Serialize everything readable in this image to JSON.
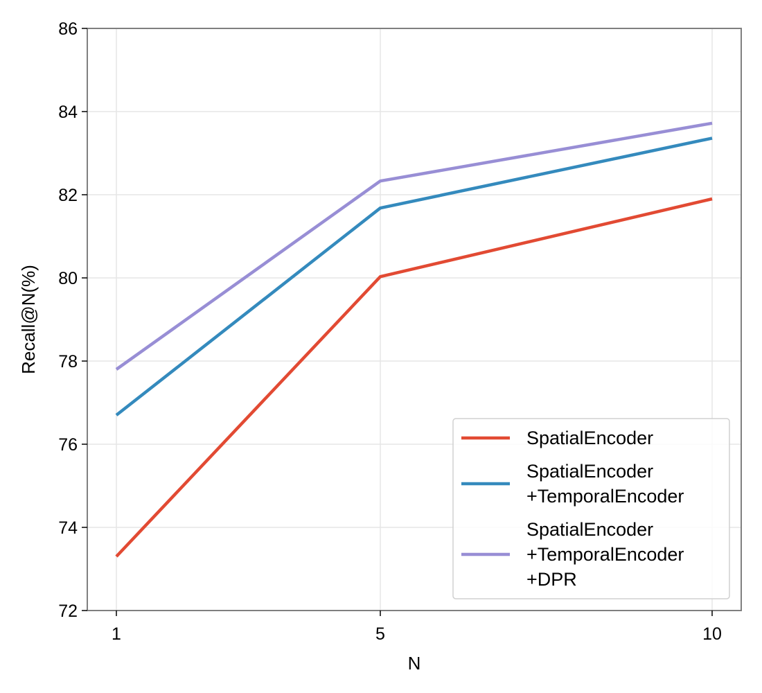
{
  "chart_data": {
    "type": "line",
    "x": [
      1,
      5,
      10
    ],
    "x_ticks": [
      "1",
      "5",
      "10"
    ],
    "xlabel": "N",
    "ylabel": "Recall@N(%)",
    "ylim": [
      72,
      86
    ],
    "y_ticks": [
      72,
      74,
      76,
      78,
      80,
      82,
      84,
      86
    ],
    "grid": true,
    "legend_position": "lower-right",
    "series": [
      {
        "name": "SpatialEncoder",
        "legend_lines": [
          "SpatialEncoder"
        ],
        "color": "#e24a33",
        "values": [
          73.3,
          80.03,
          81.9
        ]
      },
      {
        "name": "SpatialEncoder +TemporalEncoder",
        "legend_lines": [
          "SpatialEncoder",
          "+TemporalEncoder"
        ],
        "color": "#348abd",
        "values": [
          76.7,
          81.68,
          83.36
        ]
      },
      {
        "name": "SpatialEncoder +TemporalEncoder +DPR",
        "legend_lines": [
          "SpatialEncoder",
          "+TemporalEncoder",
          "+DPR"
        ],
        "color": "#988ed5",
        "values": [
          77.8,
          82.33,
          83.72
        ]
      }
    ]
  }
}
